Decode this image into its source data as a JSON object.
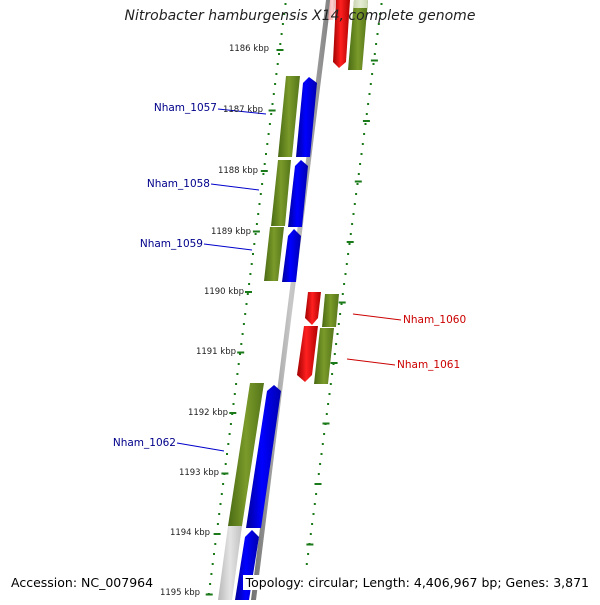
{
  "title": "Nitrobacter hamburgensis X14, complete genome",
  "footer": {
    "accession": "Accession: NC_007964",
    "topology": "Topology: circular; Length: 4,406,967 bp; Genes: 3,871"
  },
  "ticks": [
    "1186 kbp",
    "1187 kbp",
    "1188 kbp",
    "1189 kbp",
    "1190 kbp",
    "1191 kbp",
    "1192 kbp",
    "1193 kbp",
    "1194 kbp",
    "1195 kbp"
  ],
  "genes": [
    {
      "name": "Nham_1057",
      "strand": "forward"
    },
    {
      "name": "Nham_1058",
      "strand": "forward"
    },
    {
      "name": "Nham_1059",
      "strand": "forward"
    },
    {
      "name": "Nham_1060",
      "strand": "reverse"
    },
    {
      "name": "Nham_1061",
      "strand": "reverse"
    },
    {
      "name": "Nham_1062",
      "strand": "forward"
    }
  ],
  "colors": {
    "forward": "#0000ee",
    "reverse": "#ee0000",
    "cds": "#6b8e23",
    "backbone": "#9a9a9a",
    "tick": "#1a7a1a",
    "forward_label": "#00008b",
    "reverse_label": "#cc0000"
  }
}
